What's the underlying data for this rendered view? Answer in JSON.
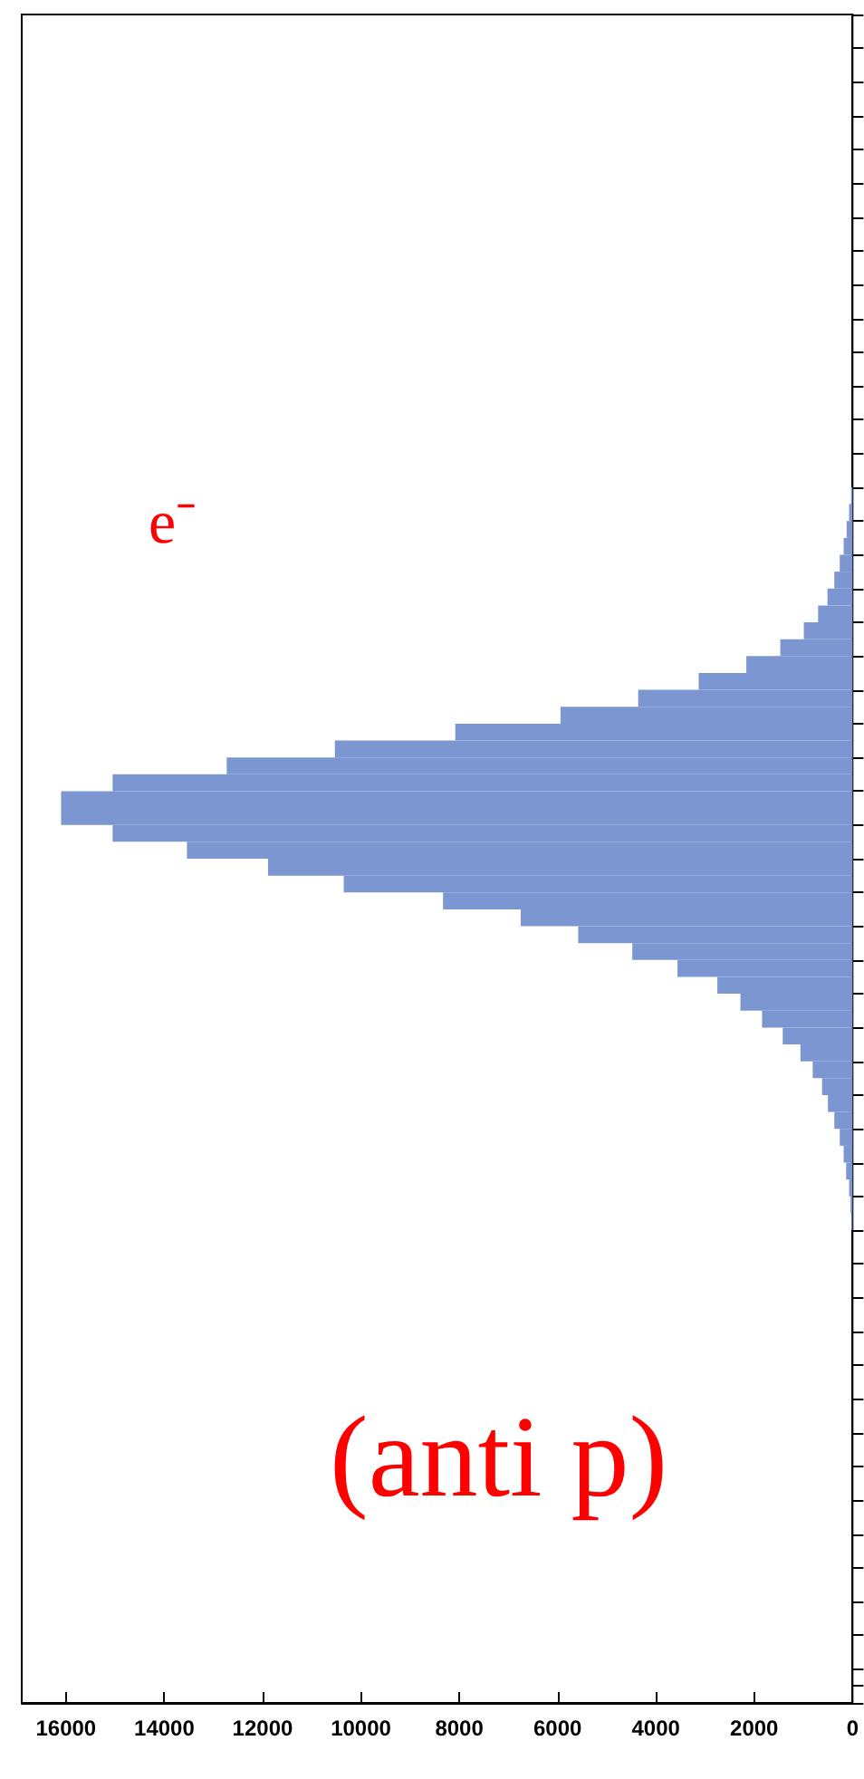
{
  "chart_data": {
    "type": "bar",
    "orientation": "horizontal",
    "tick_labels": "x",
    "grid": false,
    "categories": [
      null,
      null,
      null,
      null,
      null,
      null,
      null,
      null,
      null,
      null,
      null,
      null,
      null,
      null,
      null,
      null,
      null,
      null,
      null,
      null,
      null,
      null,
      null,
      null,
      null,
      null,
      null,
      null,
      null,
      null,
      null,
      null,
      null,
      null,
      null,
      null,
      null,
      null,
      null,
      null,
      null,
      null,
      null,
      null,
      null,
      null,
      null,
      null,
      null,
      null,
      null,
      null,
      null,
      null,
      null,
      null,
      null,
      null,
      null,
      null,
      null,
      null,
      null,
      null,
      null,
      null,
      null,
      null,
      null,
      null,
      null,
      null,
      null,
      null,
      null,
      null,
      null,
      null,
      null,
      null,
      null,
      null,
      null,
      null,
      null,
      null,
      null,
      null,
      null,
      null,
      null,
      null,
      null,
      null,
      null,
      null,
      null,
      null,
      null,
      null
    ],
    "series": [
      {
        "color": "#7b96d0",
        "values": [
          0,
          0,
          0,
          0,
          0,
          0,
          0,
          0,
          0,
          0,
          0,
          0,
          0,
          0,
          0,
          0,
          0,
          0,
          0,
          0,
          0,
          0,
          0,
          0,
          0,
          0,
          0,
          0,
          30,
          70,
          120,
          180,
          260,
          370,
          510,
          700,
          990,
          1470,
          2160,
          3130,
          4360,
          5940,
          8080,
          10530,
          12730,
          15050,
          16100,
          16100,
          15050,
          13540,
          11890,
          10350,
          8330,
          6750,
          5580,
          4480,
          3560,
          2750,
          2280,
          1840,
          1420,
          1060,
          810,
          620,
          500,
          370,
          260,
          180,
          130,
          70,
          40,
          20,
          0,
          0,
          0,
          0,
          0,
          0,
          0,
          0,
          0,
          0,
          0,
          0,
          0,
          0,
          0,
          0,
          0,
          0,
          0,
          0,
          0,
          0,
          0,
          0,
          0,
          0,
          0,
          0
        ]
      }
    ],
    "xlim": [
      16900,
      0
    ],
    "xticks": [
      16000,
      14000,
      12000,
      10000,
      8000,
      6000,
      4000,
      2000,
      0
    ],
    "annotations": [
      "e⁻",
      "(anti p)"
    ]
  }
}
